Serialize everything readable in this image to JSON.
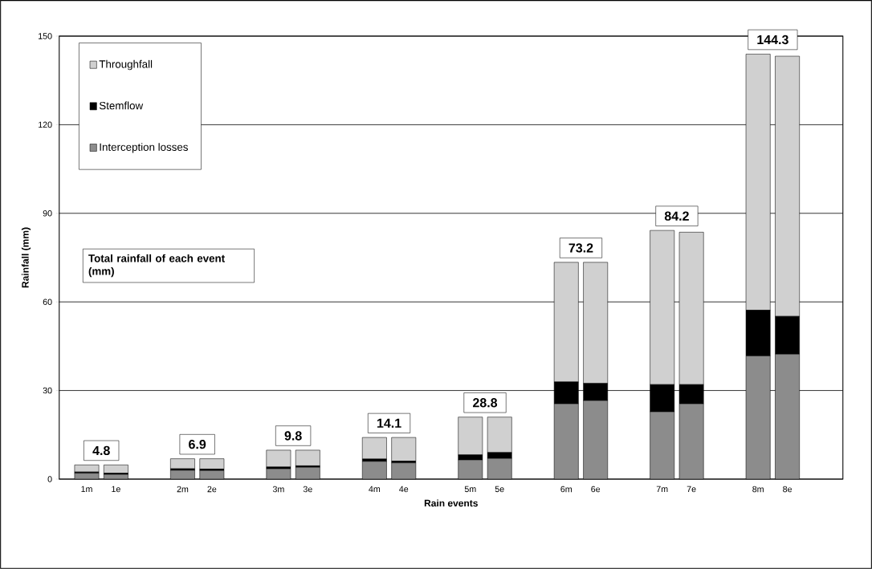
{
  "chart_data": {
    "type": "bar",
    "stacked": true,
    "xlabel": "Rain events",
    "ylabel": "Rainfall (mm)",
    "categories": [
      "1m",
      "1e",
      "2m",
      "2e",
      "3m",
      "3e",
      "4m",
      "4e",
      "5m",
      "5e",
      "6m",
      "6e",
      "7m",
      "7e",
      "8m",
      "8e"
    ],
    "series": [
      {
        "name": "Interception losses",
        "color": "#8c8c8c",
        "values": [
          2.0,
          1.6,
          3.0,
          2.9,
          3.5,
          4.0,
          6.0,
          5.5,
          6.5,
          7.0,
          25.5,
          26.6,
          22.8,
          25.5,
          41.7,
          42.3
        ]
      },
      {
        "name": "Stemflow",
        "color": "#000000",
        "values": [
          0.4,
          0.4,
          0.5,
          0.5,
          0.6,
          0.5,
          0.8,
          0.6,
          1.7,
          2.0,
          7.4,
          5.8,
          9.2,
          6.5,
          15.5,
          12.8
        ]
      },
      {
        "name": "Throughfall",
        "color": "#d0d0d0",
        "values": [
          2.4,
          2.8,
          3.4,
          3.5,
          5.7,
          5.3,
          7.3,
          8.0,
          12.8,
          12.0,
          40.5,
          41.0,
          52.2,
          51.6,
          86.7,
          88.1
        ]
      }
    ],
    "ylim": [
      0,
      150
    ],
    "yticks": [
      0,
      30,
      60,
      90,
      120,
      150
    ],
    "grid": "y",
    "legend": "top left",
    "annotations": [
      "4.8",
      "6.9",
      "9.8",
      "14.1",
      "28.8",
      "73.2",
      "84.2",
      "144.3",
      "Total rainfall of each event (mm)"
    ]
  }
}
